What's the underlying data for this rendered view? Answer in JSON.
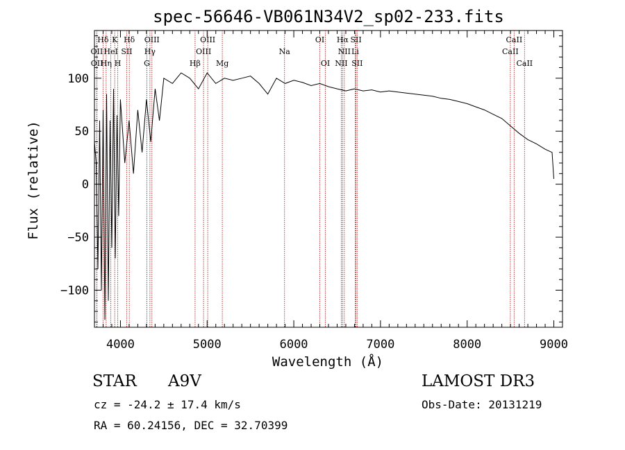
{
  "chart_data": {
    "type": "line",
    "title": "spec-56646-VB061N34V2_sp02-233.fits",
    "xlabel": "Wavelength (Å)",
    "ylabel": "Flux (relative)",
    "xlim": [
      3700,
      9100
    ],
    "ylim": [
      -135,
      145
    ],
    "xticks": [
      4000,
      5000,
      6000,
      7000,
      8000,
      9000
    ],
    "yticks": [
      -100,
      -50,
      0,
      50,
      100
    ],
    "grid": false,
    "series": [
      {
        "name": "Flux",
        "x": [
          3700,
          3720,
          3740,
          3760,
          3780,
          3800,
          3820,
          3840,
          3860,
          3880,
          3900,
          3920,
          3940,
          3960,
          3980,
          4000,
          4050,
          4100,
          4150,
          4200,
          4250,
          4300,
          4350,
          4400,
          4450,
          4500,
          4600,
          4700,
          4800,
          4900,
          5000,
          5100,
          5200,
          5300,
          5400,
          5500,
          5600,
          5700,
          5800,
          5900,
          6000,
          6100,
          6200,
          6300,
          6400,
          6500,
          6600,
          6700,
          6800,
          6900,
          7000,
          7100,
          7200,
          7300,
          7400,
          7500,
          7600,
          7700,
          7800,
          7900,
          8000,
          8100,
          8200,
          8300,
          8400,
          8500,
          8600,
          8700,
          8800,
          8900,
          8980,
          9000
        ],
        "y": [
          40,
          20,
          -80,
          60,
          -100,
          70,
          -128,
          85,
          -110,
          60,
          -60,
          90,
          -70,
          65,
          -30,
          80,
          20,
          60,
          10,
          70,
          30,
          80,
          40,
          90,
          60,
          100,
          95,
          105,
          100,
          90,
          105,
          95,
          100,
          98,
          100,
          102,
          95,
          85,
          100,
          95,
          98,
          96,
          93,
          95,
          92,
          90,
          88,
          90,
          88,
          89,
          87,
          88,
          87,
          86,
          85,
          84,
          83,
          81,
          80,
          78,
          76,
          73,
          70,
          66,
          62,
          55,
          48,
          42,
          38,
          33,
          30,
          5
        ]
      }
    ],
    "lines": [
      {
        "label": "Hδ",
        "x": 3799,
        "row": 0
      },
      {
        "label": "K",
        "x": 3934,
        "row": 0
      },
      {
        "label": "Hδ",
        "x": 4102,
        "row": 0
      },
      {
        "label": "OIII",
        "x": 4363,
        "row": 0
      },
      {
        "label": "OIII",
        "x": 5007,
        "row": 0
      },
      {
        "label": "OI",
        "x": 6300,
        "row": 0
      },
      {
        "label": "Hα",
        "x": 6563,
        "row": 0
      },
      {
        "label": "SII",
        "x": 6717,
        "row": 0
      },
      {
        "label": "CaII",
        "x": 8542,
        "row": 0
      },
      {
        "label": "OII",
        "x": 3727,
        "row": 1
      },
      {
        "label": "HeI",
        "x": 3889,
        "row": 1
      },
      {
        "label": "SII",
        "x": 4072,
        "row": 1
      },
      {
        "label": "Hγ",
        "x": 4340,
        "row": 1
      },
      {
        "label": "OIII",
        "x": 4959,
        "row": 1
      },
      {
        "label": "Na",
        "x": 5893,
        "row": 1
      },
      {
        "label": "NII",
        "x": 6583,
        "row": 1
      },
      {
        "label": "Li",
        "x": 6708,
        "row": 1
      },
      {
        "label": "CaII",
        "x": 8498,
        "row": 1
      },
      {
        "label": "OII",
        "x": 3729,
        "row": 2
      },
      {
        "label": "Hη",
        "x": 3835,
        "row": 2
      },
      {
        "label": "H",
        "x": 3969,
        "row": 2
      },
      {
        "label": "G",
        "x": 4305,
        "row": 2
      },
      {
        "label": "Hβ",
        "x": 4861,
        "row": 2
      },
      {
        "label": "Mg",
        "x": 5175,
        "row": 2
      },
      {
        "label": "OI",
        "x": 6364,
        "row": 2
      },
      {
        "label": "NII",
        "x": 6548,
        "row": 2
      },
      {
        "label": "SII",
        "x": 6731,
        "row": 2
      },
      {
        "label": "CaII",
        "x": 8662,
        "row": 2
      }
    ]
  },
  "info": {
    "object_class": "STAR",
    "subclass": "A9V",
    "survey": "LAMOST DR3",
    "cz": "cz = -24.2 ± 17.4 km/s",
    "obs_date": "Obs-Date: 20131219",
    "coords": "RA =  60.24156, DEC =  32.70399"
  },
  "colors": {
    "spectrum": "#000000",
    "line_markers": "#b22222"
  }
}
